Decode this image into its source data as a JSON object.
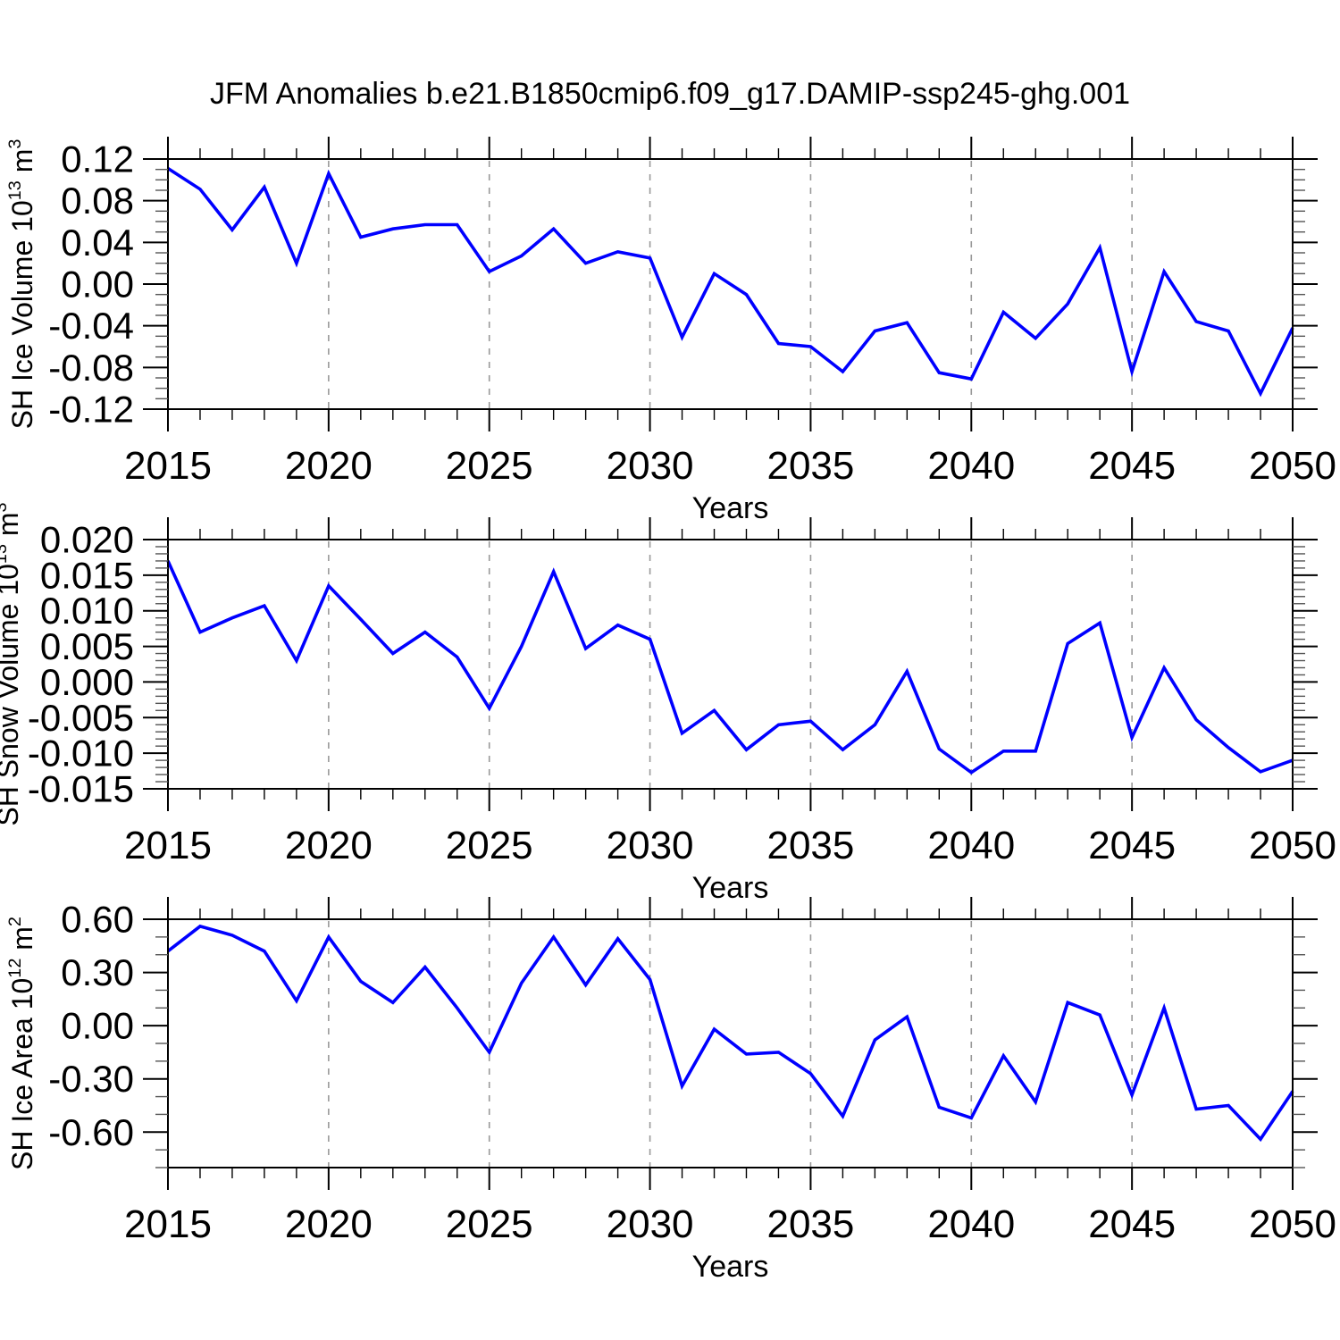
{
  "title": "JFM Anomalies b.e21.B1850cmip6.f09_g17.DAMIP-ssp245-ghg.001",
  "line_color": "#0000ff",
  "gridline_color": "#999999",
  "frame_color": "#000000",
  "x_axis": {
    "label": "Years",
    "start": 2015,
    "end": 2050,
    "major_step": 5,
    "minor_step": 1,
    "tick_labels": [
      "2015",
      "2020",
      "2025",
      "2030",
      "2035",
      "2040",
      "2045",
      "2050"
    ],
    "gridline_years": [
      2020,
      2025,
      2030,
      2035,
      2040,
      2045
    ]
  },
  "years": [
    2015,
    2016,
    2017,
    2018,
    2019,
    2020,
    2021,
    2022,
    2023,
    2024,
    2025,
    2026,
    2027,
    2028,
    2029,
    2030,
    2031,
    2032,
    2033,
    2034,
    2035,
    2036,
    2037,
    2038,
    2039,
    2040,
    2041,
    2042,
    2043,
    2044,
    2045,
    2046,
    2047,
    2048,
    2049,
    2050
  ],
  "chart_data": [
    {
      "type": "line",
      "id": "sh-ice-volume",
      "ylabel": "SH Ice Volume 10^13 m^3",
      "ylabel_parts": [
        {
          "t": "SH Ice Volume 10"
        },
        {
          "t": "13",
          "sup": true
        },
        {
          "t": " m"
        },
        {
          "t": "3",
          "sup": true
        }
      ],
      "xlabel": "Years",
      "ylim": [
        -0.12,
        0.12
      ],
      "ytick_values": [
        0.12,
        0.08,
        0.04,
        0.0,
        -0.04,
        -0.08,
        -0.12
      ],
      "ytick_labels": [
        "0.12",
        "0.08",
        "0.04",
        "0.00",
        "-0.04",
        "-0.08",
        "-0.12"
      ],
      "ytick_minor_step": 0.01,
      "grid": "vertical-dashed",
      "legend": "none",
      "values": [
        0.111,
        0.091,
        0.052,
        0.093,
        0.02,
        0.106,
        0.045,
        0.053,
        0.057,
        0.057,
        0.012,
        0.027,
        0.053,
        0.02,
        0.031,
        0.025,
        -0.051,
        0.01,
        -0.01,
        -0.057,
        -0.06,
        -0.084,
        -0.045,
        -0.037,
        -0.085,
        -0.091,
        -0.027,
        -0.052,
        -0.019,
        0.035,
        -0.084,
        0.012,
        -0.036,
        -0.045,
        -0.105,
        -0.042
      ]
    },
    {
      "type": "line",
      "id": "sh-snow-volume",
      "ylabel": "SH Snow Volume 10^13 m^3",
      "ylabel_parts": [
        {
          "t": "SH Snow Volume 10"
        },
        {
          "t": "13",
          "sup": true
        },
        {
          "t": " m"
        },
        {
          "t": "3",
          "sup": true
        }
      ],
      "xlabel": "Years",
      "ylim": [
        -0.015,
        0.02
      ],
      "ytick_values": [
        0.02,
        0.015,
        0.01,
        0.005,
        0.0,
        -0.005,
        -0.01,
        -0.015
      ],
      "ytick_labels": [
        "0.020",
        "0.015",
        "0.010",
        "0.005",
        "0.000",
        "-0.005",
        "-0.010",
        "-0.015"
      ],
      "ytick_minor_step": 0.001,
      "grid": "vertical-dashed",
      "legend": "none",
      "values": [
        0.017,
        0.007,
        0.009,
        0.0107,
        0.003,
        0.0135,
        0.0088,
        0.004,
        0.007,
        0.0035,
        -0.0037,
        0.005,
        0.0155,
        0.0047,
        0.008,
        0.006,
        -0.0072,
        -0.004,
        -0.0095,
        -0.006,
        -0.0055,
        -0.0095,
        -0.006,
        0.0015,
        -0.0094,
        -0.0127,
        -0.0097,
        -0.0097,
        0.0054,
        0.0083,
        -0.0078,
        0.002,
        -0.0053,
        -0.0092,
        -0.0126,
        -0.011
      ]
    },
    {
      "type": "line",
      "id": "sh-ice-area",
      "ylabel": "SH Ice Area 10^12 m^2",
      "ylabel_parts": [
        {
          "t": "SH Ice Area 10"
        },
        {
          "t": "12",
          "sup": true
        },
        {
          "t": " m"
        },
        {
          "t": "2",
          "sup": true
        }
      ],
      "xlabel": "Years",
      "ylim": [
        -0.8,
        0.6
      ],
      "ytick_values": [
        0.6,
        0.3,
        0.0,
        -0.3,
        -0.6
      ],
      "ytick_labels": [
        "0.60",
        "0.30",
        "0.00",
        "-0.30",
        "-0.60"
      ],
      "ytick_minor_step": 0.1,
      "grid": "vertical-dashed",
      "legend": "none",
      "values": [
        0.42,
        0.56,
        0.51,
        0.42,
        0.14,
        0.5,
        0.25,
        0.13,
        0.33,
        0.1,
        -0.15,
        0.24,
        0.5,
        0.23,
        0.49,
        0.26,
        -0.34,
        -0.02,
        -0.16,
        -0.15,
        -0.27,
        -0.51,
        -0.08,
        0.05,
        -0.46,
        -0.52,
        -0.17,
        -0.43,
        0.13,
        0.06,
        -0.39,
        0.1,
        -0.47,
        -0.45,
        -0.64,
        -0.37
      ]
    }
  ]
}
